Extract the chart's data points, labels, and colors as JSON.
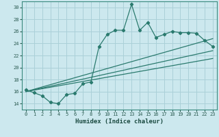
{
  "title": "",
  "xlabel": "Humidex (Indice chaleur)",
  "ylabel": "",
  "bg_color": "#cce8ee",
  "grid_color": "#aad0d8",
  "line_color": "#2a7a6e",
  "xlim": [
    -0.5,
    23.5
  ],
  "ylim": [
    13.0,
    31.0
  ],
  "yticks": [
    14,
    16,
    18,
    20,
    22,
    24,
    26,
    28,
    30
  ],
  "xticks": [
    0,
    1,
    2,
    3,
    4,
    5,
    6,
    7,
    8,
    9,
    10,
    11,
    12,
    13,
    14,
    15,
    16,
    17,
    18,
    19,
    20,
    21,
    22,
    23
  ],
  "line1_x": [
    0,
    1,
    2,
    3,
    4,
    5,
    6,
    7,
    8,
    9,
    10,
    11,
    12,
    13,
    14,
    15,
    16,
    17,
    18,
    19,
    20,
    21,
    22,
    23
  ],
  "line1_y": [
    16.3,
    15.8,
    15.3,
    14.2,
    14.0,
    15.5,
    15.7,
    17.3,
    17.6,
    23.5,
    25.5,
    26.2,
    26.2,
    30.5,
    26.2,
    27.5,
    25.0,
    25.5,
    26.0,
    25.8,
    25.8,
    25.7,
    24.5,
    23.5
  ],
  "line2_x": [
    0,
    23
  ],
  "line2_y": [
    16.0,
    24.8
  ],
  "line3_x": [
    0,
    23
  ],
  "line3_y": [
    16.0,
    22.8
  ],
  "line4_x": [
    0,
    23
  ],
  "line4_y": [
    16.0,
    21.5
  ],
  "tick_fontsize": 5.0,
  "xlabel_fontsize": 6.5
}
